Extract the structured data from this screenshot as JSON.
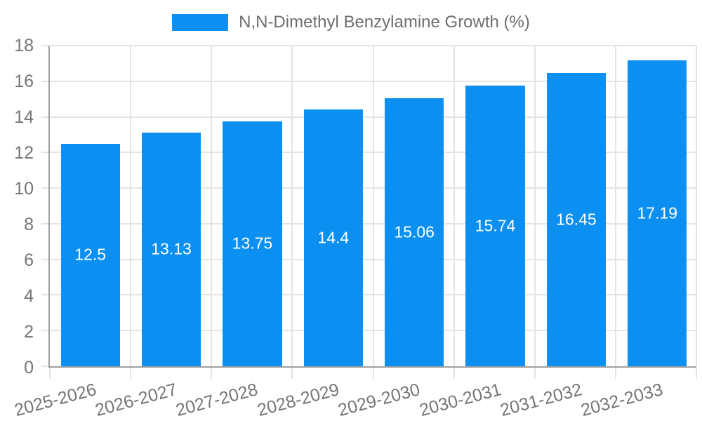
{
  "legend": {
    "label": "N,N-Dimethyl Benzylamine Growth (%)"
  },
  "colors": {
    "bar": "#0b90f2",
    "grid": "#e4e4e4",
    "axis": "#a0a0a0",
    "tick_text": "#757575",
    "legend_text": "#6e6e6e",
    "value_text": "#ffffff",
    "background": "#ffffff"
  },
  "chart_data": {
    "type": "bar",
    "title": "N,N-Dimethyl Benzylamine Growth (%)",
    "categories": [
      "2025-2026",
      "2026-2027",
      "2027-2028",
      "2028-2029",
      "2029-2030",
      "2030-2031",
      "2031-2032",
      "2032-2033"
    ],
    "values": [
      12.5,
      13.13,
      13.75,
      14.4,
      15.06,
      15.74,
      16.45,
      17.19
    ],
    "value_labels": [
      "12.5",
      "13.13",
      "13.75",
      "14.4",
      "15.06",
      "15.74",
      "16.45",
      "17.19"
    ],
    "xlabel": "",
    "ylabel": "",
    "ylim": [
      0,
      18
    ],
    "yticks": [
      0,
      2,
      4,
      6,
      8,
      10,
      12,
      14,
      16,
      18
    ],
    "grid": true,
    "legend_position": "top-center",
    "value_labels_position": "inside-center",
    "xlabel_rotation_deg": -15
  }
}
